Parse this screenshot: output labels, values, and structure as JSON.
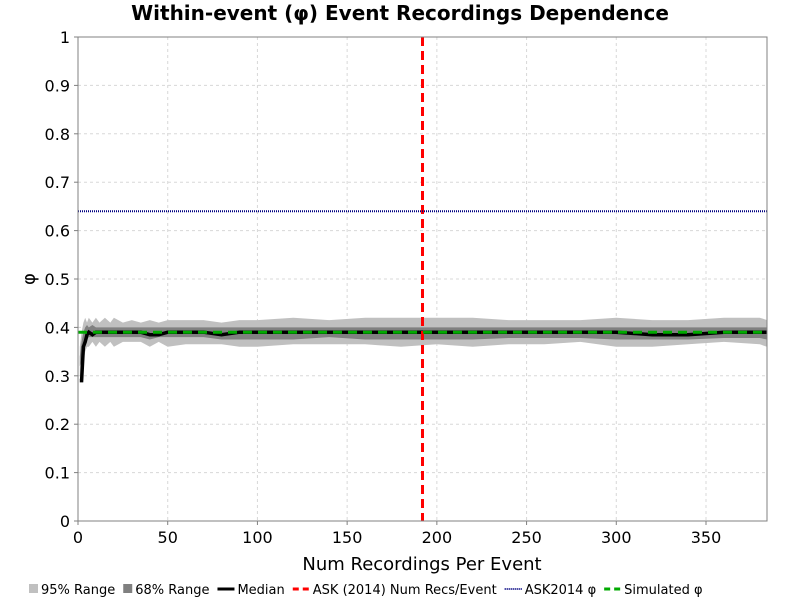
{
  "chart_data": {
    "type": "line",
    "title": "Within-event (φ) Event Recordings Dependence",
    "xlabel": "Num Recordings Per Event",
    "ylabel": "φ",
    "xlim": [
      0,
      384
    ],
    "ylim": [
      0,
      1
    ],
    "xticks": [
      0,
      50,
      100,
      150,
      200,
      250,
      300,
      350
    ],
    "xtick_labels": [
      "0",
      "50",
      "100",
      "150",
      "200",
      "250",
      "300",
      "350"
    ],
    "yticks": [
      0,
      0.1,
      0.2,
      0.3,
      0.4,
      0.5,
      0.6,
      0.7,
      0.8,
      0.9,
      1
    ],
    "ytick_labels": [
      "0",
      "0.1",
      "0.2",
      "0.3",
      "0.4",
      "0.5",
      "0.6",
      "0.7",
      "0.8",
      "0.9",
      "1"
    ],
    "grid": true,
    "legend_position": "bottom",
    "x": [
      1,
      2,
      3,
      4,
      5,
      6,
      8,
      10,
      12,
      15,
      18,
      20,
      25,
      30,
      35,
      40,
      45,
      50,
      60,
      70,
      80,
      90,
      100,
      120,
      140,
      160,
      180,
      200,
      220,
      240,
      260,
      280,
      300,
      320,
      340,
      360,
      380,
      384
    ],
    "series": [
      {
        "name": "95% Range",
        "type": "band",
        "color": "#c0c0c0",
        "lower": [
          0.3,
          0.3,
          0.33,
          0.35,
          0.36,
          0.36,
          0.37,
          0.36,
          0.37,
          0.36,
          0.37,
          0.36,
          0.37,
          0.37,
          0.37,
          0.36,
          0.37,
          0.36,
          0.365,
          0.365,
          0.365,
          0.36,
          0.36,
          0.365,
          0.365,
          0.365,
          0.36,
          0.365,
          0.36,
          0.365,
          0.365,
          0.37,
          0.36,
          0.36,
          0.365,
          0.37,
          0.365,
          0.36
        ],
        "upper": [
          0.36,
          0.39,
          0.41,
          0.42,
          0.41,
          0.42,
          0.41,
          0.42,
          0.41,
          0.42,
          0.41,
          0.42,
          0.41,
          0.415,
          0.41,
          0.415,
          0.41,
          0.415,
          0.415,
          0.415,
          0.41,
          0.415,
          0.415,
          0.42,
          0.415,
          0.42,
          0.42,
          0.42,
          0.42,
          0.415,
          0.415,
          0.415,
          0.42,
          0.415,
          0.415,
          0.42,
          0.42,
          0.415
        ]
      },
      {
        "name": "68% Range",
        "type": "band",
        "color": "#808080",
        "lower": [
          0.32,
          0.33,
          0.36,
          0.37,
          0.375,
          0.38,
          0.38,
          0.38,
          0.38,
          0.38,
          0.38,
          0.38,
          0.38,
          0.38,
          0.38,
          0.375,
          0.38,
          0.38,
          0.38,
          0.38,
          0.375,
          0.375,
          0.375,
          0.375,
          0.38,
          0.375,
          0.375,
          0.375,
          0.375,
          0.378,
          0.378,
          0.378,
          0.375,
          0.375,
          0.375,
          0.378,
          0.378,
          0.375
        ],
        "upper": [
          0.34,
          0.37,
          0.39,
          0.4,
          0.405,
          0.4,
          0.405,
          0.4,
          0.4,
          0.4,
          0.4,
          0.4,
          0.4,
          0.4,
          0.4,
          0.4,
          0.4,
          0.4,
          0.4,
          0.4,
          0.4,
          0.4,
          0.4,
          0.4,
          0.4,
          0.4,
          0.4,
          0.4,
          0.4,
          0.4,
          0.4,
          0.4,
          0.4,
          0.4,
          0.4,
          0.4,
          0.4,
          0.4
        ]
      },
      {
        "name": "Median",
        "type": "line",
        "color": "#000000",
        "values": [
          0.29,
          0.29,
          0.36,
          0.37,
          0.385,
          0.39,
          0.385,
          0.39,
          0.39,
          0.39,
          0.39,
          0.39,
          0.39,
          0.39,
          0.39,
          0.385,
          0.385,
          0.39,
          0.39,
          0.39,
          0.385,
          0.39,
          0.39,
          0.39,
          0.39,
          0.39,
          0.39,
          0.39,
          0.39,
          0.39,
          0.39,
          0.39,
          0.39,
          0.385,
          0.385,
          0.39,
          0.39,
          0.39
        ]
      },
      {
        "name": "ASK (2014) Num Recs/Event",
        "type": "vline",
        "color": "#ff0000",
        "x_value": 192
      },
      {
        "name": "ASK2014 φ",
        "type": "hline",
        "color": "#000080",
        "y_value": 0.64
      },
      {
        "name": "Simulated φ",
        "type": "hline",
        "color": "#00aa00",
        "y_value": 0.39
      }
    ]
  }
}
